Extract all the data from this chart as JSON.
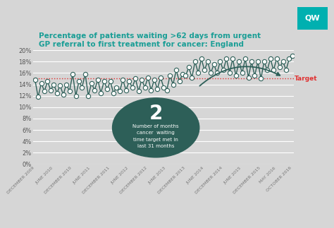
{
  "title_line1": "Percentage of patients waiting >62 days from urgent",
  "title_line2": "GP referral to first treatment for cancer: England",
  "title_color": "#1a9e96",
  "background_color": "#d6d6d6",
  "plot_bg_color": "#d6d6d6",
  "line_color": "#2d5f58",
  "marker_face": "white",
  "marker_edge": "#2d5f58",
  "target_color": "#e03030",
  "target_value": 15.0,
  "ylim": [
    0,
    20
  ],
  "yticks": [
    0,
    2,
    4,
    6,
    8,
    10,
    12,
    14,
    16,
    18,
    20
  ],
  "ytick_labels": [
    "0%",
    "2%",
    "4%",
    "6%",
    "8%",
    "10%",
    "12%",
    "14%",
    "16%",
    "18%",
    "20%"
  ],
  "x_labels": [
    "DECEMBER 2009",
    "JUNE 2010",
    "DECEMBER 2010",
    "JUNE 2011",
    "DECEMBER 2011",
    "JUNE 2012",
    "DECEMBER 2012",
    "JUNE 2013",
    "DECEMBER 2013",
    "JUNE 2014",
    "DECEMBER 2014",
    "JUNE 2015",
    "DECEMBER 2015",
    "MAY 2016",
    "OCTOBER 2016"
  ],
  "circle_color": "#2d5f58",
  "circle_number": "2",
  "circle_text1": "Number of months",
  "circle_text2": "cancer  waiting",
  "circle_text3": "time target met in",
  "circle_text4": "last 31 months",
  "qw_color": "#00b0b0",
  "target_label": "Target",
  "grid_color": "#c0c0c0"
}
